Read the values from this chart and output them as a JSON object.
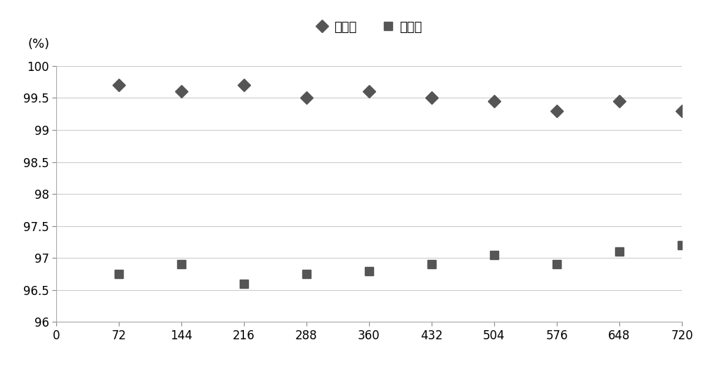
{
  "x": [
    72,
    144,
    216,
    288,
    360,
    432,
    504,
    576,
    648,
    720
  ],
  "conversion": [
    99.7,
    99.6,
    99.7,
    99.5,
    99.6,
    99.5,
    99.45,
    99.3,
    99.45,
    99.3
  ],
  "selectivity": [
    96.75,
    96.9,
    96.6,
    96.75,
    96.8,
    96.9,
    97.05,
    96.9,
    97.1,
    97.2
  ],
  "ylabel": "(%)",
  "ylim": [
    96,
    100
  ],
  "yticks": [
    96,
    96.5,
    97,
    97.5,
    98,
    98.5,
    99,
    99.5,
    100
  ],
  "xlim": [
    0,
    720
  ],
  "xticks": [
    0,
    72,
    144,
    216,
    288,
    360,
    432,
    504,
    576,
    648,
    720
  ],
  "legend_conversion": "转化率",
  "legend_selectivity": "选择性",
  "marker_color": "#555555",
  "background_color": "#ffffff",
  "grid_color": "#cccccc",
  "tick_fontsize": 12,
  "label_fontsize": 13
}
